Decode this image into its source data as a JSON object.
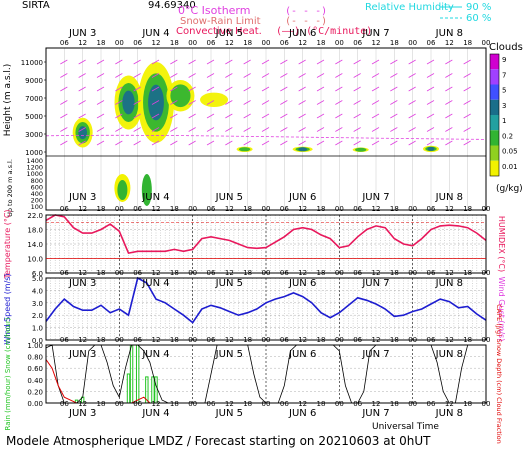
{
  "header": {
    "station": "SIRTA",
    "coords": "94.69340",
    "legend_isotherm": "0°C Isotherm",
    "legend_isotherm_sym": "(- - -)",
    "legend_snowrain": "Snow-Rain Limit",
    "legend_snowrain_sym": "(- - -)",
    "legend_convective": "Convective Heat.",
    "legend_convective_sym": "(——) (°C/minute)",
    "legend_rh": "Relative Humidity",
    "legend_rh_90": "90 %",
    "legend_rh_60": "60 %"
  },
  "days": [
    "JUN 3",
    "JUN 4",
    "JUN 5",
    "JUN 6",
    "JUN 7",
    "JUN 8"
  ],
  "hours": [
    "06",
    "12",
    "18",
    "00"
  ],
  "footer": {
    "title": "Modele Atmospherique LMDZ / Forecast starting on 20210603 at 0hUT",
    "xlabel": "Universal Time"
  },
  "colors": {
    "temperature": "#e8185c",
    "wind": "#1d1dd0",
    "rh": "#22d8e0",
    "wind_arrow": "#e040e0",
    "rain": "#22c522",
    "precip_line": "#e00000",
    "cape": "#000000",
    "cloud_low": "#f2f200",
    "cloud_mid": "#32b432",
    "cloud_high": "#1a6e8a",
    "frame": "#000000"
  },
  "colorbar": {
    "title": "Clouds",
    "unit": "(g/kg)",
    "labels": [
      "9",
      "7",
      "5",
      "3",
      "1",
      "0.2",
      "0.05",
      "0.01"
    ],
    "colors": [
      "#d000d0",
      "#a040ff",
      "#4050ff",
      "#1a6e8a",
      "#22a0a0",
      "#32b432",
      "#90d020",
      "#f2f200"
    ]
  },
  "chart_data": [
    {
      "type": "heatmap",
      "title": "",
      "ylabel": "Height (m a.s.l.)",
      "ylabel2": "Up to 200 m a.s.l.",
      "yticks_upper": [
        "11000",
        "9000",
        "7000",
        "5000",
        "3000",
        "1000"
      ],
      "yticks_lower": [
        "1400",
        "1200",
        "1000",
        "800",
        "600",
        "400",
        "200",
        "100"
      ],
      "ylim": [
        0,
        11000
      ]
    },
    {
      "type": "line",
      "ylabel": "Temperature (°C)",
      "ylabel_right": "HUMIDEX (°C)",
      "yticks": [
        "22.0",
        "18.0",
        "14.0",
        "10.0",
        "6.0"
      ],
      "ylim": [
        6,
        22
      ],
      "x": [
        0,
        3,
        6,
        9,
        12,
        15,
        18,
        21,
        24,
        27,
        30,
        33,
        36,
        39,
        42,
        45,
        48,
        51,
        54,
        57,
        60,
        63,
        66,
        69,
        72,
        75,
        78,
        81,
        84,
        87,
        90,
        93,
        96,
        99,
        102,
        105,
        108,
        111,
        114,
        117,
        120,
        123,
        126,
        129,
        132,
        135,
        138,
        141,
        144
      ],
      "temperature": [
        20.5,
        22,
        21.5,
        18.5,
        17,
        17,
        18,
        19.5,
        17.5,
        11.5,
        12,
        12,
        12,
        12,
        12.5,
        12,
        12.5,
        15.5,
        16,
        15.5,
        15,
        14,
        13,
        12.8,
        13,
        14.5,
        16,
        18,
        18.5,
        18,
        16.5,
        15.5,
        13,
        13.5,
        16,
        18,
        19,
        18.5,
        15.5,
        14,
        13.5,
        15.5,
        18,
        19,
        19.2,
        19,
        18.5,
        17,
        15
      ]
    },
    {
      "type": "line",
      "ylabel": "Wind Speed (m/s)",
      "ylabel_right": "Wind Gust (m/s)",
      "yticks": [
        "5.0",
        "4.0",
        "3.0",
        "2.0",
        "1.0",
        "0.0"
      ],
      "ylim": [
        0,
        5
      ],
      "x": [
        0,
        3,
        6,
        9,
        12,
        15,
        18,
        21,
        24,
        27,
        30,
        33,
        36,
        39,
        42,
        45,
        48,
        51,
        54,
        57,
        60,
        63,
        66,
        69,
        72,
        75,
        78,
        81,
        84,
        87,
        90,
        93,
        96,
        99,
        102,
        105,
        108,
        111,
        114,
        117,
        120,
        123,
        126,
        129,
        132,
        135,
        138,
        141,
        144
      ],
      "wind_speed": [
        1.5,
        2.5,
        3.3,
        2.7,
        2.4,
        2.4,
        2.8,
        2.2,
        2.5,
        2.0,
        5.0,
        4.6,
        3.3,
        3.0,
        2.5,
        2.0,
        1.4,
        2.5,
        2.8,
        2.6,
        2.3,
        2.0,
        2.2,
        2.5,
        3.0,
        3.3,
        3.5,
        3.8,
        3.5,
        3.0,
        2.2,
        1.8,
        2.2,
        2.8,
        3.4,
        3.2,
        2.9,
        2.5,
        1.9,
        2.0,
        2.3,
        2.5,
        2.9,
        3.3,
        3.1,
        2.6,
        2.7,
        2.1,
        1.6
      ]
    },
    {
      "type": "line",
      "ylabel": "Rain (mm/hour) Snow (cm/hour)",
      "ylabel_right": "CAPE (J/g) Snow Depth (cm) Cloud Fraction",
      "yticks": [
        "1.00",
        "0.80",
        "0.60",
        "0.40",
        "0.20",
        "0.00"
      ],
      "ylim": [
        0,
        1
      ],
      "rain_bars": [
        [
          10,
          0.05
        ],
        [
          12,
          0.1
        ],
        [
          27,
          0.5
        ],
        [
          28,
          1.0
        ],
        [
          30,
          1.0
        ],
        [
          33,
          0.45
        ],
        [
          35,
          0.45
        ],
        [
          36,
          0.45
        ]
      ],
      "cape_x": [
        0,
        2,
        4,
        6,
        8,
        10,
        12,
        14,
        16,
        18,
        20,
        22,
        24,
        26,
        28,
        30,
        32,
        34,
        36,
        38,
        40,
        42,
        44,
        46,
        48,
        50,
        52,
        54,
        56,
        58,
        60,
        62,
        64,
        66,
        68,
        70,
        72,
        74,
        76,
        78,
        80,
        82,
        84,
        86,
        88,
        90,
        92,
        94,
        96,
        98,
        100,
        102,
        104,
        106,
        108,
        110,
        112,
        114,
        116,
        118,
        120,
        122,
        124,
        126,
        128,
        130,
        132,
        134,
        136,
        138,
        140,
        142,
        144
      ],
      "cape": [
        0.95,
        1,
        0.3,
        0,
        0,
        0,
        0.1,
        0.9,
        1,
        1,
        0.7,
        0.3,
        0.1,
        0.6,
        1,
        1,
        0.9,
        0.7,
        0.3,
        0.05,
        0,
        0,
        0,
        0,
        0,
        0,
        0,
        0.5,
        1,
        1,
        1,
        1,
        1,
        1,
        0.5,
        0.1,
        0,
        0,
        0,
        0.3,
        0.9,
        1,
        1,
        1,
        1,
        1,
        1,
        1,
        0.9,
        0.3,
        0,
        0,
        0.2,
        0.9,
        1,
        1,
        1,
        1,
        1,
        1,
        1,
        1,
        1,
        1,
        0.7,
        0.2,
        0,
        0,
        0.6,
        1,
        1,
        1,
        1
      ],
      "precip_line": [
        0.75,
        0.6,
        0.3,
        0.1,
        0.05,
        0,
        0,
        0,
        0,
        0,
        0,
        0,
        0,
        0,
        0,
        0.05,
        0.1,
        0,
        0,
        0,
        0,
        0,
        0,
        0,
        0,
        0,
        0,
        0,
        0,
        0,
        0,
        0,
        0,
        0,
        0,
        0,
        0,
        0,
        0,
        0,
        0,
        0,
        0,
        0,
        0,
        0,
        0,
        0,
        0,
        0,
        0,
        0,
        0,
        0,
        0,
        0,
        0,
        0,
        0,
        0,
        0,
        0,
        0,
        0,
        0,
        0,
        0,
        0,
        0,
        0,
        0,
        0,
        0
      ]
    }
  ]
}
